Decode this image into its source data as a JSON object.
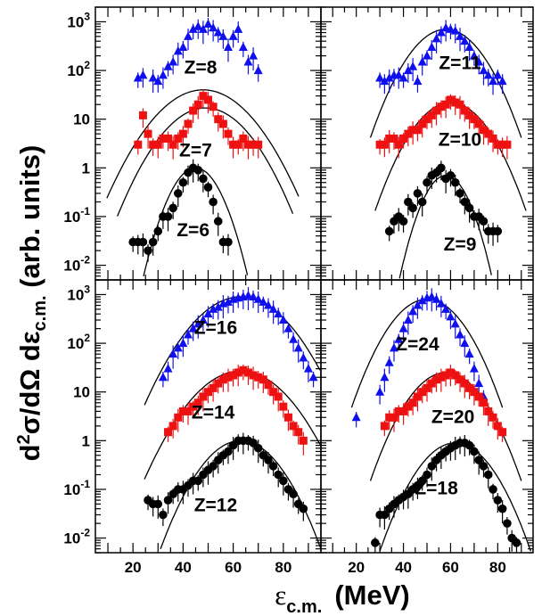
{
  "chart_data": {
    "type": "scatter",
    "figure": {
      "ylabel_parts": {
        "pre": "d",
        "sup": "2",
        "mid": "σ/dΩ dε",
        "sub": "c.m.",
        "post": " (arb. units)"
      },
      "xlabel_parts": {
        "eps": "ε",
        "sub": "c.m.",
        "unit": "(MeV)"
      },
      "x_scale": "linear",
      "y_scale": "log",
      "xlim": [
        5,
        95
      ],
      "ylim": [
        0.005,
        2000
      ],
      "x_ticks": [
        20,
        40,
        60,
        80
      ],
      "y_ticks": [
        {
          "value": 0.01,
          "base": "10",
          "exp": "-2"
        },
        {
          "value": 0.1,
          "base": "10",
          "exp": "-1"
        },
        {
          "value": 1,
          "base": "1",
          "exp": ""
        },
        {
          "value": 10,
          "base": "10",
          "exp": ""
        },
        {
          "value": 100,
          "base": "10",
          "exp": "2"
        },
        {
          "value": 1000,
          "base": "10",
          "exp": "3"
        }
      ],
      "colors": {
        "blue": "#1010ee",
        "red": "#ee1111",
        "black": "#000000",
        "fit": "#000000"
      }
    },
    "panels": [
      {
        "id": "top-left",
        "series": [
          {
            "label": "Z=8",
            "color": "blue",
            "marker": "triangle",
            "fit": {
              "peak": 40,
              "center": 48,
              "sigma": 12
            },
            "x": [
              22,
              24,
              28,
              30,
              32,
              34,
              36,
              38,
              40,
              42,
              44,
              46,
              48,
              50,
              52,
              54,
              56,
              58,
              60,
              62,
              64,
              66,
              68,
              70
            ],
            "y": [
              70,
              80,
              70,
              60,
              80,
              120,
              150,
              250,
              300,
              500,
              700,
              800,
              700,
              900,
              750,
              600,
              500,
              300,
              500,
              700,
              300,
              150,
              200,
              100
            ]
          },
          {
            "label": "Z=7",
            "color": "red",
            "marker": "square",
            "fit": {
              "peak": 17,
              "center": 49,
              "sigma": 11
            },
            "x": [
              22,
              24,
              26,
              28,
              30,
              32,
              34,
              36,
              38,
              40,
              42,
              44,
              46,
              48,
              50,
              52,
              54,
              56,
              58,
              60,
              62,
              64,
              66,
              68,
              70
            ],
            "y": [
              3,
              12,
              5,
              3,
              3,
              4,
              4,
              3,
              4,
              5,
              8,
              15,
              20,
              30,
              25,
              18,
              10,
              8,
              5,
              3,
              3,
              4,
              3,
              3,
              3
            ]
          },
          {
            "label": "Z=6",
            "color": "black",
            "marker": "circle",
            "fit": {
              "peak": 1,
              "center": 45,
              "sigma": 6.5
            },
            "x": [
              20,
              22,
              24,
              26,
              28,
              30,
              32,
              34,
              36,
              38,
              40,
              42,
              44,
              46,
              48,
              50,
              52,
              54,
              56,
              58
            ],
            "y": [
              0.03,
              0.03,
              0.03,
              0.02,
              0.03,
              0.05,
              0.1,
              0.1,
              0.15,
              0.3,
              0.5,
              0.8,
              1.0,
              0.9,
              0.6,
              0.4,
              0.2,
              0.08,
              0.03,
              0.03
            ]
          }
        ],
        "labels": [
          {
            "text": "Z=8",
            "x": 47,
            "y": 120
          },
          {
            "text": "Z=7",
            "x": 45,
            "y": 2.4
          },
          {
            "text": "Z=6",
            "x": 44,
            "y": 0.055
          }
        ]
      },
      {
        "id": "top-right",
        "series": [
          {
            "label": "Z=11",
            "color": "blue",
            "marker": "triangle",
            "fit": {
              "peak": 700,
              "center": 58,
              "sigma": 10
            },
            "x": [
              30,
              32,
              34,
              36,
              38,
              40,
              42,
              44,
              46,
              48,
              50,
              52,
              54,
              56,
              58,
              60,
              62,
              64,
              66,
              68,
              70,
              72,
              74,
              76,
              78,
              80,
              82
            ],
            "y": [
              70,
              60,
              70,
              80,
              80,
              70,
              100,
              120,
              60,
              150,
              200,
              300,
              450,
              600,
              750,
              700,
              650,
              500,
              400,
              300,
              200,
              150,
              100,
              80,
              60,
              80,
              60
            ]
          },
          {
            "label": "Z=10",
            "color": "red",
            "marker": "square",
            "fit": {
              "peak": 22,
              "center": 60,
              "sigma": 10
            },
            "x": [
              30,
              32,
              34,
              36,
              38,
              40,
              42,
              44,
              46,
              48,
              50,
              52,
              54,
              56,
              58,
              60,
              62,
              64,
              66,
              68,
              70,
              72,
              74,
              76,
              78,
              80,
              82,
              84
            ],
            "y": [
              3,
              3,
              4,
              4,
              3,
              4,
              5,
              6,
              6,
              8,
              10,
              12,
              15,
              18,
              20,
              25,
              22,
              20,
              15,
              12,
              10,
              8,
              6,
              5,
              4,
              3,
              3,
              3
            ]
          },
          {
            "label": "Z=9",
            "color": "black",
            "marker": "circle",
            "fit": {
              "peak": 0.7,
              "center": 58,
              "sigma": 6.3
            },
            "x": [
              34,
              36,
              38,
              40,
              42,
              44,
              46,
              48,
              50,
              52,
              54,
              56,
              58,
              60,
              62,
              64,
              66,
              68,
              70,
              72,
              74,
              76,
              78,
              80
            ],
            "y": [
              0.05,
              0.08,
              0.1,
              0.08,
              0.2,
              0.15,
              0.3,
              0.2,
              0.5,
              0.7,
              0.8,
              1.0,
              0.6,
              0.7,
              0.5,
              0.3,
              0.2,
              0.15,
              0.1,
              0.1,
              0.08,
              0.05,
              0.05,
              0.05
            ]
          }
        ],
        "labels": [
          {
            "text": "Z=11",
            "x": 64,
            "y": 150
          },
          {
            "text": "Z=10",
            "x": 64,
            "y": 4
          },
          {
            "text": "Z=9",
            "x": 64,
            "y": 0.028
          }
        ]
      },
      {
        "id": "bottom-left",
        "series": [
          {
            "label": "Z=16",
            "color": "blue",
            "marker": "triangle",
            "fit": {
              "peak": 900,
              "center": 63,
              "sigma": 12
            },
            "x": [
              32,
              34,
              36,
              38,
              40,
              42,
              44,
              46,
              48,
              50,
              52,
              54,
              56,
              58,
              60,
              62,
              64,
              66,
              68,
              70,
              72,
              74,
              76,
              78,
              80,
              82,
              84,
              86,
              88,
              90,
              92
            ],
            "y": [
              20,
              30,
              60,
              80,
              100,
              150,
              200,
              250,
              300,
              400,
              500,
              550,
              650,
              700,
              800,
              850,
              900,
              950,
              900,
              800,
              700,
              600,
              500,
              400,
              300,
              200,
              120,
              80,
              50,
              30,
              20
            ]
          },
          {
            "label": "Z=14",
            "color": "red",
            "marker": "square",
            "fit": {
              "peak": 27,
              "center": 63,
              "sigma": 12
            },
            "x": [
              34,
              36,
              38,
              40,
              42,
              44,
              46,
              48,
              50,
              52,
              54,
              56,
              58,
              60,
              62,
              64,
              66,
              68,
              70,
              72,
              74,
              76,
              78,
              80,
              82,
              84,
              86,
              88
            ],
            "y": [
              1.5,
              2,
              3,
              4,
              4,
              5,
              6,
              8,
              10,
              12,
              15,
              18,
              20,
              22,
              25,
              28,
              25,
              22,
              20,
              18,
              14,
              10,
              8,
              5,
              3,
              2,
              1.5,
              1
            ]
          },
          {
            "label": "Z=12",
            "color": "black",
            "marker": "circle",
            "fit": {
              "peak": 1,
              "center": 63,
              "sigma": 10
            },
            "x": [
              26,
              28,
              30,
              32,
              34,
              36,
              38,
              40,
              42,
              44,
              46,
              48,
              50,
              52,
              54,
              56,
              58,
              60,
              62,
              64,
              66,
              68,
              70,
              72,
              74,
              76,
              78,
              80,
              82,
              84,
              86,
              88
            ],
            "y": [
              0.06,
              0.05,
              0.05,
              0.03,
              0.06,
              0.08,
              0.1,
              0.1,
              0.12,
              0.15,
              0.15,
              0.2,
              0.25,
              0.3,
              0.4,
              0.5,
              0.6,
              0.8,
              1.0,
              1.0,
              1.0,
              0.9,
              0.7,
              0.5,
              0.4,
              0.3,
              0.2,
              0.15,
              0.1,
              0.08,
              0.05,
              0.04
            ]
          }
        ],
        "labels": [
          {
            "text": "Z=16",
            "x": 53,
            "y": 220
          },
          {
            "text": "Z=14",
            "x": 52,
            "y": 4
          },
          {
            "text": "Z=12",
            "x": 53,
            "y": 0.05
          }
        ]
      },
      {
        "id": "bottom-right",
        "series": [
          {
            "label": "Z=24",
            "color": "blue",
            "marker": "triangle",
            "fit": {
              "peak": 800,
              "center": 50,
              "sigma": 10
            },
            "x": [
              20,
              30,
              32,
              34,
              36,
              38,
              40,
              42,
              44,
              46,
              48,
              50,
              52,
              54,
              56,
              58,
              60,
              62,
              64,
              66,
              68,
              70,
              72,
              74
            ],
            "y": [
              3,
              10,
              20,
              40,
              80,
              120,
              200,
              300,
              450,
              600,
              750,
              850,
              900,
              800,
              650,
              500,
              350,
              250,
              150,
              100,
              60,
              30,
              15,
              8
            ]
          },
          {
            "label": "Z=20",
            "color": "red",
            "marker": "square",
            "fit": {
              "peak": 25,
              "center": 58,
              "sigma": 10
            },
            "x": [
              32,
              34,
              36,
              38,
              40,
              42,
              44,
              46,
              48,
              50,
              52,
              54,
              56,
              58,
              60,
              62,
              64,
              66,
              68,
              70,
              72,
              74,
              76,
              78,
              80,
              82
            ],
            "y": [
              2,
              3,
              3,
              4,
              4,
              5,
              6,
              8,
              10,
              12,
              15,
              18,
              20,
              22,
              25,
              22,
              18,
              15,
              12,
              10,
              8,
              6,
              4,
              3,
              2,
              1.5
            ]
          },
          {
            "label": "Z=18",
            "color": "black",
            "marker": "circle",
            "fit": {
              "peak": 0.9,
              "center": 62,
              "sigma": 10
            },
            "x": [
              28,
              30,
              32,
              34,
              36,
              38,
              40,
              42,
              44,
              46,
              48,
              50,
              52,
              54,
              56,
              58,
              60,
              62,
              64,
              66,
              68,
              70,
              72,
              74,
              76,
              78,
              80,
              82,
              84,
              86,
              88
            ],
            "y": [
              0.008,
              0.03,
              0.03,
              0.04,
              0.05,
              0.06,
              0.07,
              0.08,
              0.1,
              0.12,
              0.15,
              0.2,
              0.3,
              0.4,
              0.5,
              0.6,
              0.7,
              0.8,
              0.9,
              0.9,
              0.8,
              0.6,
              0.4,
              0.3,
              0.2,
              0.1,
              0.06,
              0.04,
              0.02,
              0.01,
              0.008
            ]
          }
        ],
        "labels": [
          {
            "text": "Z=24",
            "x": 46,
            "y": 100
          },
          {
            "text": "Z=20",
            "x": 61,
            "y": 3.2
          },
          {
            "text": "Z=18",
            "x": 54,
            "y": 0.11
          }
        ]
      }
    ]
  }
}
